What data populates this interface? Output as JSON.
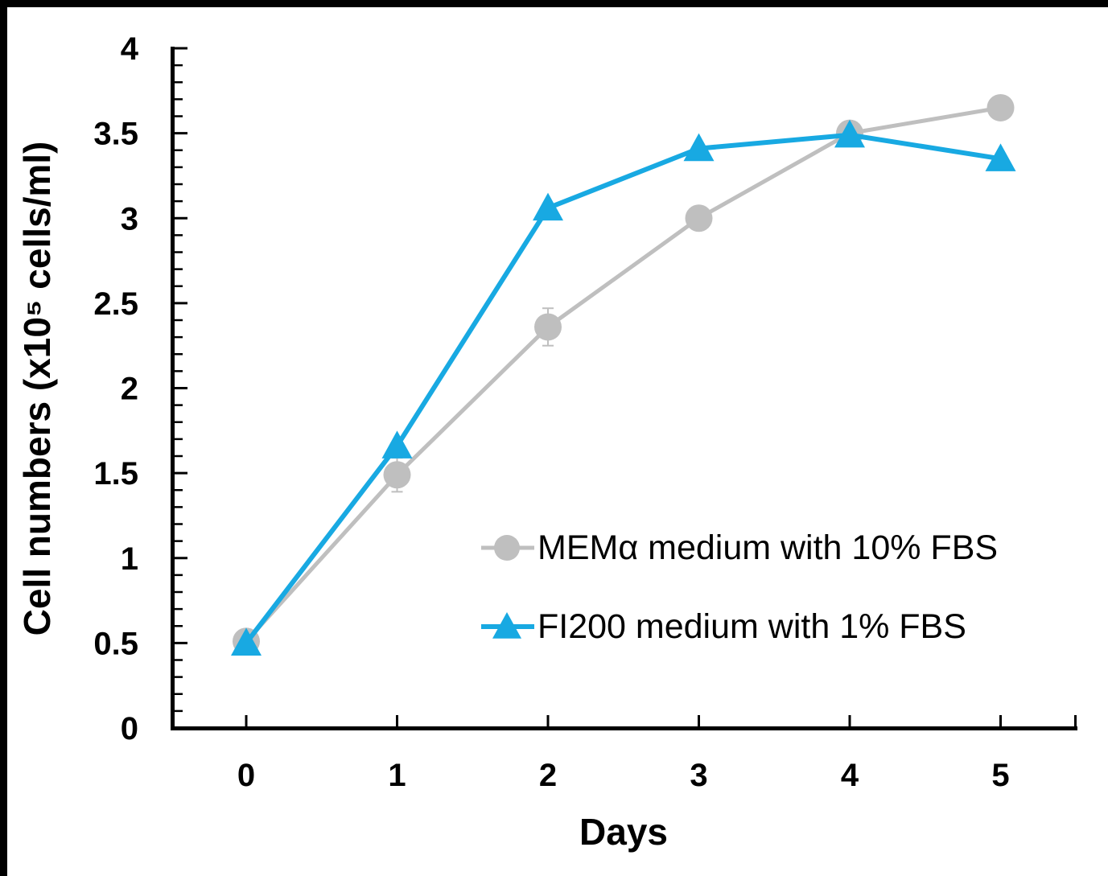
{
  "frame": {
    "border_color": "#000000",
    "background_color": "#ffffff"
  },
  "chart_data": {
    "type": "line",
    "x": [
      0,
      1,
      2,
      3,
      4,
      5
    ],
    "series": [
      {
        "name": "MEMα medium with 10% FBS",
        "marker": "circle",
        "color": "#BFBFBF",
        "values": [
          0.51,
          1.49,
          2.36,
          3.0,
          3.5,
          3.65
        ],
        "error": [
          0,
          0.1,
          0.11,
          0,
          0,
          0
        ]
      },
      {
        "name": "FI200 medium with 1% FBS",
        "marker": "triangle",
        "color": "#18A9E2",
        "values": [
          0.5,
          1.66,
          3.06,
          3.41,
          3.49,
          3.35
        ],
        "error": [
          0,
          0,
          0,
          0,
          0,
          0
        ]
      }
    ],
    "title": "",
    "xlabel": "Days",
    "ylabel": "Cell numbers (x10⁵ cells/ml)",
    "x_tick_labels": [
      "0",
      "1",
      "2",
      "3",
      "4",
      "5"
    ],
    "y_tick_labels": [
      "0",
      "0.5",
      "1",
      "1.5",
      "2",
      "2.5",
      "3",
      "3.5",
      "4"
    ],
    "xlim": [
      0,
      5
    ],
    "ylim": [
      0,
      4
    ],
    "y_major_step": 0.5,
    "y_minor_step": 0.1,
    "grid": false,
    "tick_direction": "inside",
    "axis_color": "#000000",
    "text_color": "#000000",
    "legend_position": "inside-center-right"
  }
}
